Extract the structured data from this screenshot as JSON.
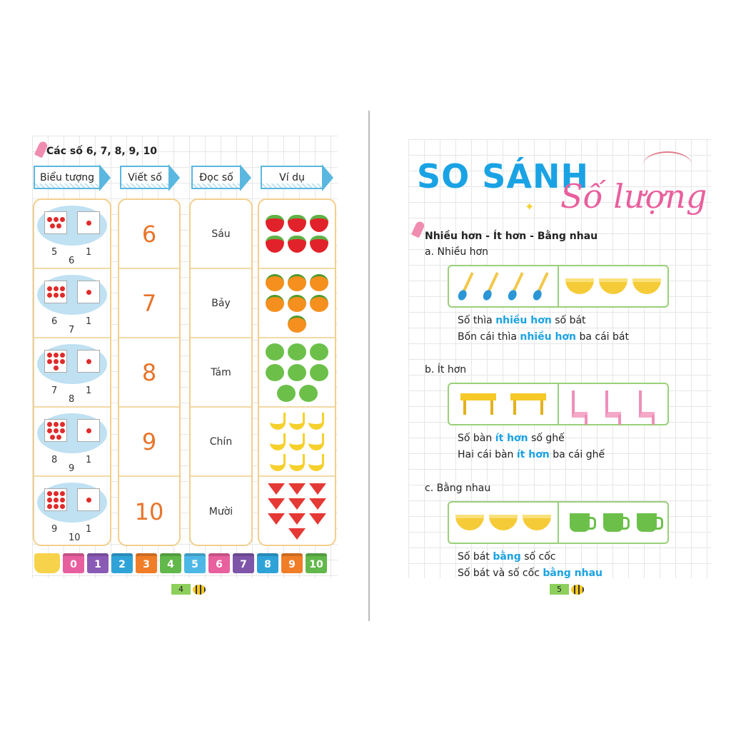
{
  "left_page": {
    "title": "Các số 6, 7, 8, 9, 10",
    "headers": [
      "Biểu tượng",
      "Viết số",
      "Đọc số",
      "Ví dụ"
    ],
    "rows": [
      {
        "left": 5,
        "right": 1,
        "total": "6",
        "word": "Sáu",
        "fruit": "strawberry",
        "count": 6
      },
      {
        "left": 6,
        "right": 1,
        "total": "7",
        "word": "Bảy",
        "fruit": "orange",
        "count": 7
      },
      {
        "left": 7,
        "right": 1,
        "total": "8",
        "word": "Tám",
        "fruit": "apple",
        "count": 8
      },
      {
        "left": 8,
        "right": 1,
        "total": "9",
        "word": "Chín",
        "fruit": "banana",
        "count": 9
      },
      {
        "left": 9,
        "right": 1,
        "total": "10",
        "word": "Mười",
        "fruit": "melon",
        "count": 10
      }
    ],
    "train": [
      "0",
      "1",
      "2",
      "3",
      "4",
      "5",
      "6",
      "7",
      "8",
      "9",
      "10"
    ],
    "train_colors": [
      "#e85fa0",
      "#8a5bb5",
      "#2fa3d8",
      "#f07d28",
      "#62b84a",
      "#4db8e6",
      "#e8609e",
      "#7e55a8",
      "#2fa3d8",
      "#f07d28",
      "#62b84a"
    ],
    "page_number": "4"
  },
  "right_page": {
    "title_main": "SO SÁNH",
    "title_script": "Số lượng",
    "heading": "Nhiều hơn - Ít hơn - Bằng nhau",
    "sections": [
      {
        "label": "a. Nhiều hơn",
        "left_item": "spoon",
        "left_count": 4,
        "right_item": "bowl",
        "right_count": 3,
        "l1": [
          "Số thìa ",
          "nhiều hơn",
          " số bát"
        ],
        "l2": [
          "Bốn cái thìa ",
          "nhiều hơn",
          " ba cái bát"
        ]
      },
      {
        "label": "b. Ít hơn",
        "left_item": "table",
        "left_count": 2,
        "right_item": "chair",
        "right_count": 3,
        "l1": [
          "Số bàn ",
          "ít hơn",
          " số ghế"
        ],
        "l2": [
          "Hai cái bàn ",
          "ít hơn",
          " ba cái ghế"
        ]
      },
      {
        "label": "c. Bằng nhau",
        "left_item": "bowl",
        "left_count": 3,
        "right_item": "cup",
        "right_count": 3,
        "l1": [
          "Số bát ",
          "bằng",
          " số cốc"
        ],
        "l2": [
          "Số bát và số cốc ",
          "bằng nhau",
          ""
        ]
      }
    ],
    "page_number": "5"
  }
}
